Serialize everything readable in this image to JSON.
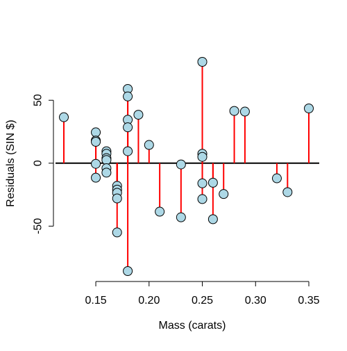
{
  "chart_data": {
    "type": "scatter",
    "title": "",
    "xlabel": "Mass (carats)",
    "ylabel": "Residuals (SIN $)",
    "xlim": [
      0.12,
      0.35
    ],
    "ylim": [
      -85.7,
      80.5
    ],
    "xticks": [
      0.15,
      0.2,
      0.25,
      0.3,
      0.35
    ],
    "xtick_labels": [
      "0.15",
      "0.20",
      "0.25",
      "0.30",
      "0.35"
    ],
    "yticks": [
      -50,
      0,
      50
    ],
    "ytick_labels": [
      "-50",
      "0",
      "50"
    ],
    "reference_line": 0,
    "grid": false,
    "legend": "none",
    "style": {
      "point_fill": "#add8e6",
      "point_stroke": "#000000",
      "stem_color": "#ff0000"
    },
    "points": [
      {
        "x": 0.12,
        "y": 36.5
      },
      {
        "x": 0.15,
        "y": 24.5
      },
      {
        "x": 0.15,
        "y": 18.0
      },
      {
        "x": 0.15,
        "y": 17.0
      },
      {
        "x": 0.15,
        "y": -0.5
      },
      {
        "x": 0.15,
        "y": -11.5
      },
      {
        "x": 0.16,
        "y": 9.5
      },
      {
        "x": 0.16,
        "y": 7.5
      },
      {
        "x": 0.16,
        "y": 4.0
      },
      {
        "x": 0.16,
        "y": 2.5
      },
      {
        "x": 0.16,
        "y": -4.0
      },
      {
        "x": 0.16,
        "y": -7.5
      },
      {
        "x": 0.17,
        "y": -18.0
      },
      {
        "x": 0.17,
        "y": -21.0
      },
      {
        "x": 0.17,
        "y": -23.5
      },
      {
        "x": 0.17,
        "y": -28.0
      },
      {
        "x": 0.17,
        "y": -55.0
      },
      {
        "x": 0.18,
        "y": 59.0
      },
      {
        "x": 0.18,
        "y": 53.0
      },
      {
        "x": 0.18,
        "y": 34.5
      },
      {
        "x": 0.18,
        "y": 28.5
      },
      {
        "x": 0.18,
        "y": 9.5
      },
      {
        "x": 0.18,
        "y": -85.7
      },
      {
        "x": 0.19,
        "y": 38.5
      },
      {
        "x": 0.2,
        "y": 14.5
      },
      {
        "x": 0.21,
        "y": -38.5
      },
      {
        "x": 0.23,
        "y": -1.0
      },
      {
        "x": 0.23,
        "y": -43.0
      },
      {
        "x": 0.25,
        "y": 80.5
      },
      {
        "x": 0.25,
        "y": 7.5
      },
      {
        "x": 0.25,
        "y": 5.0
      },
      {
        "x": 0.25,
        "y": -16.0
      },
      {
        "x": 0.25,
        "y": -28.5
      },
      {
        "x": 0.26,
        "y": -15.5
      },
      {
        "x": 0.26,
        "y": -44.5
      },
      {
        "x": 0.27,
        "y": -24.5
      },
      {
        "x": 0.28,
        "y": 41.5
      },
      {
        "x": 0.29,
        "y": 41.0
      },
      {
        "x": 0.32,
        "y": -12.0
      },
      {
        "x": 0.33,
        "y": -23.0
      },
      {
        "x": 0.35,
        "y": 43.5
      }
    ]
  }
}
